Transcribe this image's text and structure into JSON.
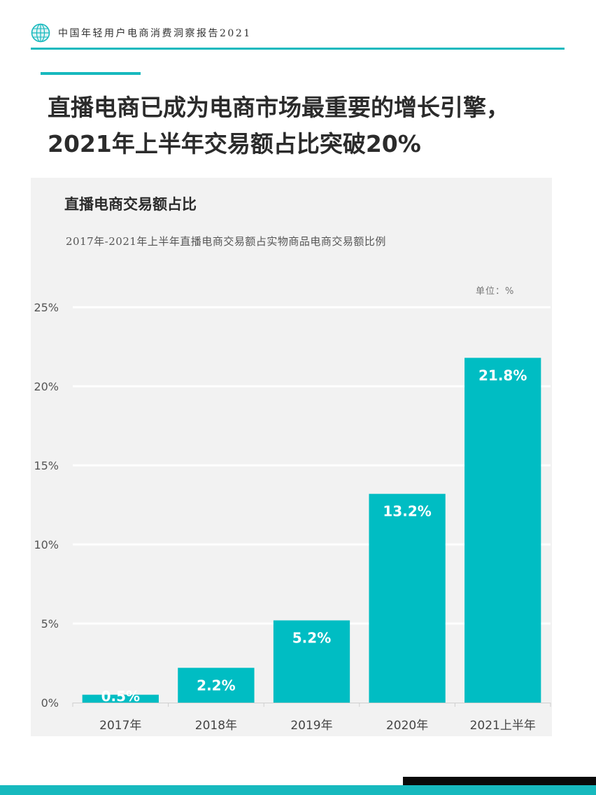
{
  "header": {
    "title": "中国年轻用户电商消费洞察报告2021",
    "logo_icon": "globe-icon"
  },
  "headline": {
    "line1": "直播电商已成为电商市场最重要的增长引擎，",
    "line2": "2021年上半年交易额占比突破20%"
  },
  "colors": {
    "accent": "#17b9be",
    "bar": "#00bdc3",
    "panel": "#f2f2f2"
  },
  "chart_data": {
    "type": "bar",
    "title": "直播电商交易额占比",
    "subtitle": "2017年-2021年上半年直播电商交易额占实物商品电商交易额比例",
    "unit_label": "单位：%",
    "categories": [
      "2017年",
      "2018年",
      "2019年",
      "2020年",
      "2021上半年"
    ],
    "values": [
      0.5,
      2.2,
      5.2,
      13.2,
      21.8
    ],
    "data_labels": [
      "0.5%",
      "2.2%",
      "5.2%",
      "13.2%",
      "21.8%"
    ],
    "yticks": [
      0,
      5,
      10,
      15,
      20,
      25
    ],
    "ytick_labels": [
      "0%",
      "5%",
      "10%",
      "15%",
      "20%",
      "25%"
    ],
    "ylim": [
      0,
      25
    ],
    "grid": true,
    "legend": "none"
  }
}
